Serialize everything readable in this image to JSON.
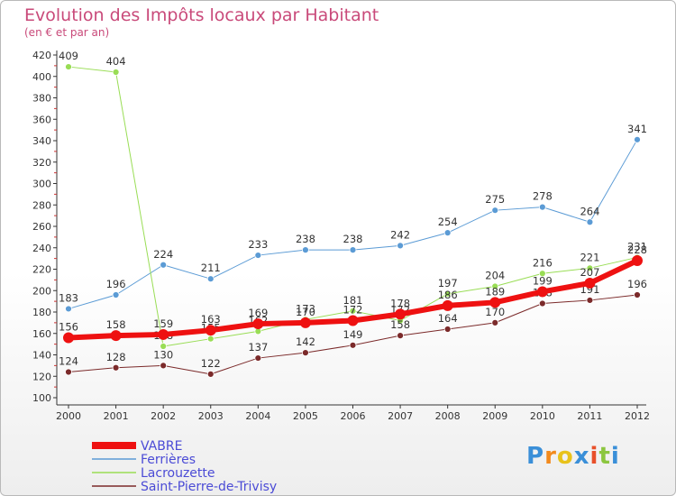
{
  "title": "Evolution des Impôts locaux par Habitant",
  "subtitle": "(en € et par an)",
  "logo": {
    "letters": [
      "P",
      "r",
      "o",
      "x",
      "i",
      "t",
      "i"
    ],
    "colors": [
      "#3a8fd8",
      "#f28a1d",
      "#e8c21b",
      "#3a8fd8",
      "#e8502a",
      "#8cc63f",
      "#3a8fd8"
    ]
  },
  "chart_data": {
    "type": "line",
    "x": [
      2000,
      2001,
      2002,
      2003,
      2004,
      2005,
      2006,
      2007,
      2008,
      2009,
      2010,
      2011,
      2012
    ],
    "ylim": [
      100,
      420
    ],
    "yticks": [
      100,
      120,
      140,
      160,
      180,
      200,
      220,
      240,
      260,
      280,
      300,
      320,
      340,
      360,
      380,
      400,
      420
    ],
    "grid": false,
    "legend_position": "bottom-left",
    "series": [
      {
        "name": "Ferrières",
        "color": "#5b9bd5",
        "width": 1,
        "labels": true,
        "values": [
          183,
          196,
          224,
          211,
          233,
          238,
          238,
          242,
          254,
          275,
          278,
          264,
          341
        ],
        "labels_text": [
          "183",
          "196",
          "224",
          "211",
          "233",
          "238",
          "238",
          "242",
          "254",
          "275",
          "278",
          "264",
          "341"
        ]
      },
      {
        "name": "Lacrouzette",
        "color": "#99dd55",
        "width": 1,
        "labels": true,
        "values": [
          409,
          404,
          148,
          155,
          162,
          173,
          181,
          172,
          197,
          204,
          216,
          221,
          231
        ],
        "labels_text": [
          "409",
          "404",
          "148",
          "155",
          "162",
          "173",
          "181",
          "172",
          "197",
          "204",
          "216",
          "221",
          "231"
        ]
      },
      {
        "name": "Saint-Pierre-de-Trivisy",
        "color": "#7b2a2a",
        "width": 1,
        "labels": true,
        "values": [
          124,
          128,
          130,
          122,
          137,
          142,
          149,
          158,
          164,
          170,
          188,
          191,
          196
        ],
        "labels_text": [
          "124",
          "128",
          "130",
          "122",
          "137",
          "142",
          "149",
          "158",
          "164",
          "170",
          "188",
          "191",
          "196"
        ]
      },
      {
        "name": "VABRE",
        "color": "#ee1111",
        "width": 6,
        "labels": true,
        "values": [
          156,
          158,
          159,
          163,
          169,
          170,
          172,
          178,
          186,
          189,
          199,
          207,
          228
        ],
        "labels_text": [
          "156",
          "158",
          "159",
          "163",
          "169",
          "170",
          "172",
          "178",
          "186",
          "189",
          "199",
          "207",
          "228"
        ]
      }
    ],
    "legend_order": [
      "VABRE",
      "Ferrières",
      "Lacrouzette",
      "Saint-Pierre-de-Trivisy"
    ]
  }
}
